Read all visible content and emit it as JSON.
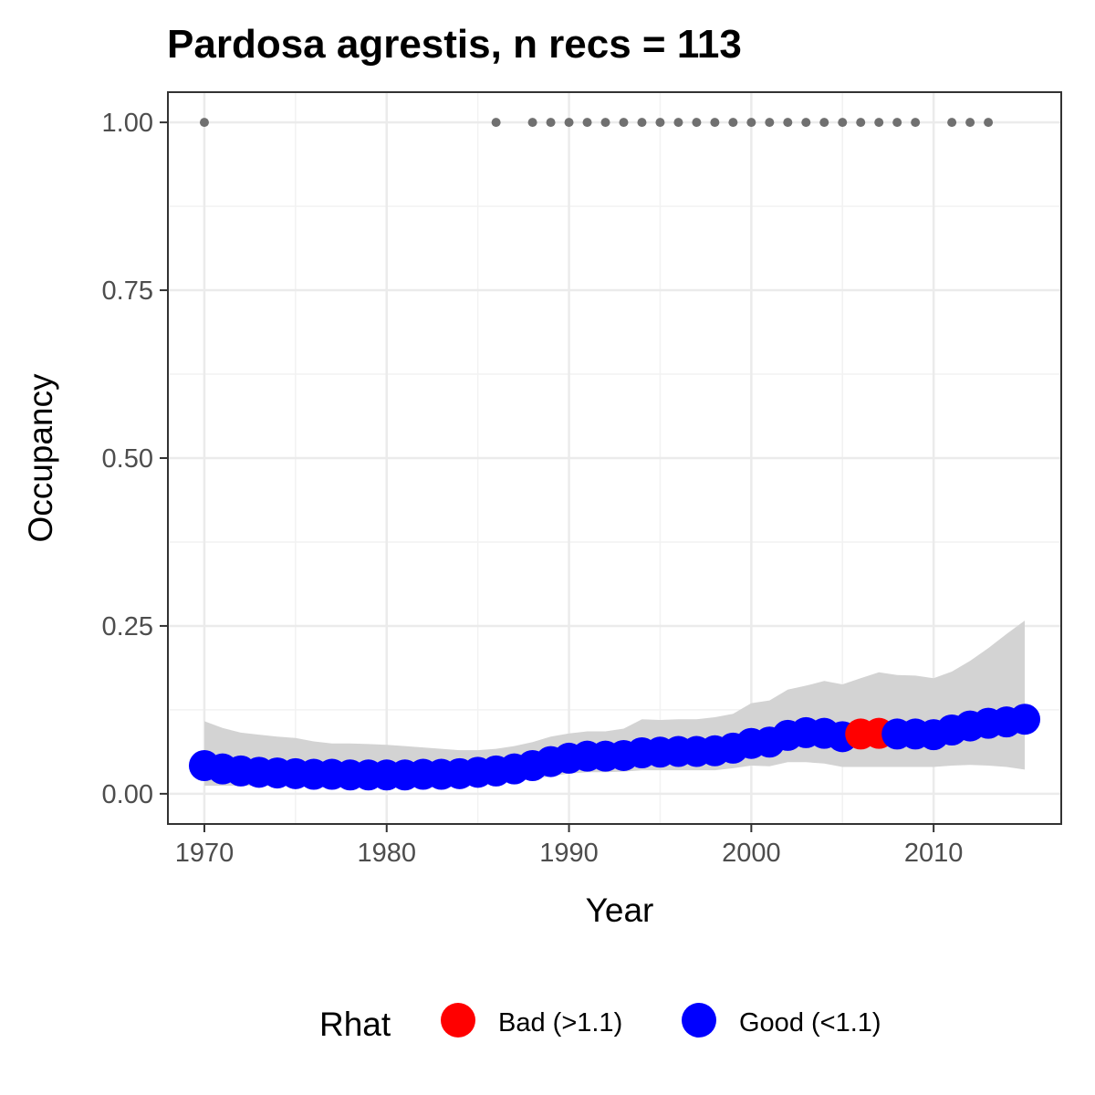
{
  "chart_data": {
    "type": "scatter",
    "title": "Pardosa agrestis, n recs = 113",
    "xlabel": "Year",
    "ylabel": "Occupancy",
    "xlim": [
      1968,
      2017
    ],
    "ylim": [
      -0.045,
      1.045
    ],
    "x_ticks": [
      1970,
      1980,
      1990,
      2000,
      2010
    ],
    "x_tick_labels": [
      "1970",
      "1980",
      "1990",
      "2000",
      "2010"
    ],
    "y_ticks": [
      0,
      0.25,
      0.5,
      0.75,
      1.0
    ],
    "y_tick_labels": [
      "0.00",
      "0.25",
      "0.50",
      "0.75",
      "1.00"
    ],
    "grid": true,
    "legend": {
      "title": "Rhat",
      "position": "bottom",
      "entries": [
        {
          "label": "Bad (>1.1)",
          "color": "#ff0000"
        },
        {
          "label": "Good (<1.1)",
          "color": "#0000ff"
        }
      ]
    },
    "colors": {
      "bad": "#ff0000",
      "good": "#0000ff",
      "ribbon": "#d3d3d3",
      "records": "#707070"
    },
    "record_years": [
      1970,
      1986,
      1988,
      1989,
      1990,
      1991,
      1992,
      1993,
      1994,
      1995,
      1996,
      1997,
      1998,
      1999,
      2000,
      2001,
      2002,
      2003,
      2004,
      2005,
      2006,
      2007,
      2008,
      2009,
      2011,
      2012,
      2013
    ],
    "record_value": 1.0,
    "series": [
      {
        "name": "Occupancy",
        "x": [
          1970,
          1971,
          1972,
          1973,
          1974,
          1975,
          1976,
          1977,
          1978,
          1979,
          1980,
          1981,
          1982,
          1983,
          1984,
          1985,
          1986,
          1987,
          1988,
          1989,
          1990,
          1991,
          1992,
          1993,
          1994,
          1995,
          1996,
          1997,
          1998,
          1999,
          2000,
          2001,
          2002,
          2003,
          2004,
          2005,
          2006,
          2007,
          2008,
          2009,
          2010,
          2011,
          2012,
          2013,
          2014,
          2015
        ],
        "y": [
          0.042,
          0.037,
          0.034,
          0.032,
          0.031,
          0.03,
          0.029,
          0.029,
          0.028,
          0.028,
          0.028,
          0.028,
          0.029,
          0.029,
          0.03,
          0.032,
          0.034,
          0.037,
          0.042,
          0.048,
          0.053,
          0.056,
          0.056,
          0.057,
          0.061,
          0.062,
          0.063,
          0.063,
          0.064,
          0.068,
          0.075,
          0.077,
          0.087,
          0.091,
          0.09,
          0.085,
          0.089,
          0.09,
          0.089,
          0.089,
          0.088,
          0.095,
          0.101,
          0.105,
          0.107,
          0.111
        ],
        "rhat": [
          "Good",
          "Good",
          "Good",
          "Good",
          "Good",
          "Good",
          "Good",
          "Good",
          "Good",
          "Good",
          "Good",
          "Good",
          "Good",
          "Good",
          "Good",
          "Good",
          "Good",
          "Good",
          "Good",
          "Good",
          "Good",
          "Good",
          "Good",
          "Good",
          "Good",
          "Good",
          "Good",
          "Good",
          "Good",
          "Good",
          "Good",
          "Good",
          "Good",
          "Good",
          "Good",
          "Good",
          "Bad",
          "Bad",
          "Good",
          "Good",
          "Good",
          "Good",
          "Good",
          "Good",
          "Good",
          "Good"
        ],
        "lower": [
          0.012,
          0.012,
          0.012,
          0.012,
          0.012,
          0.012,
          0.012,
          0.012,
          0.012,
          0.012,
          0.012,
          0.012,
          0.013,
          0.013,
          0.014,
          0.015,
          0.017,
          0.019,
          0.022,
          0.026,
          0.03,
          0.032,
          0.032,
          0.033,
          0.035,
          0.035,
          0.035,
          0.035,
          0.035,
          0.038,
          0.042,
          0.041,
          0.047,
          0.047,
          0.045,
          0.04,
          0.04,
          0.04,
          0.04,
          0.04,
          0.04,
          0.042,
          0.043,
          0.042,
          0.04,
          0.036
        ],
        "upper": [
          0.108,
          0.098,
          0.091,
          0.088,
          0.085,
          0.083,
          0.078,
          0.075,
          0.075,
          0.074,
          0.073,
          0.071,
          0.069,
          0.067,
          0.065,
          0.065,
          0.067,
          0.071,
          0.077,
          0.085,
          0.09,
          0.093,
          0.093,
          0.097,
          0.111,
          0.11,
          0.111,
          0.111,
          0.114,
          0.119,
          0.135,
          0.139,
          0.155,
          0.161,
          0.168,
          0.163,
          0.172,
          0.181,
          0.177,
          0.176,
          0.172,
          0.182,
          0.198,
          0.217,
          0.238,
          0.258
        ]
      }
    ]
  }
}
